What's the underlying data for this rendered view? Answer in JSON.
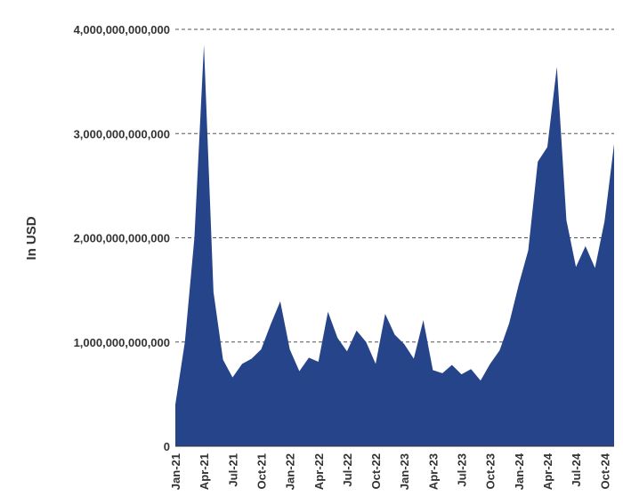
{
  "chart_data": {
    "type": "area",
    "ylabel": "In USD",
    "xlabel": "",
    "title": "",
    "color": "#25448a",
    "ylim": [
      0,
      4000000000000
    ],
    "y_ticks": [
      {
        "value": 0,
        "label": "0"
      },
      {
        "value": 1000000000000,
        "label": "1,000,000,000,000"
      },
      {
        "value": 2000000000000,
        "label": "2,000,000,000,000"
      },
      {
        "value": 3000000000000,
        "label": "3,000,000,000,000"
      },
      {
        "value": 4000000000000,
        "label": "4,000,000,000,000"
      }
    ],
    "x_ticks": [
      "Jan-21",
      "Apr-21",
      "Jul-21",
      "Oct-21",
      "Jan-22",
      "Apr-22",
      "Jul-22",
      "Oct-22",
      "Jan-23",
      "Apr-23",
      "Jul-23",
      "Oct-23",
      "Jan-24",
      "Apr-24",
      "Jul-24",
      "Oct-24"
    ],
    "x_tick_every": 3,
    "grid": true,
    "legend": "none",
    "x": [
      "Jan-21",
      "Feb-21",
      "Mar-21",
      "Apr-21",
      "May-21",
      "Jun-21",
      "Jul-21",
      "Aug-21",
      "Sep-21",
      "Oct-21",
      "Nov-21",
      "Dec-21",
      "Jan-22",
      "Feb-22",
      "Mar-22",
      "Apr-22",
      "May-22",
      "Jun-22",
      "Jul-22",
      "Aug-22",
      "Sep-22",
      "Oct-22",
      "Nov-22",
      "Dec-22",
      "Jan-23",
      "Feb-23",
      "Mar-23",
      "Apr-23",
      "May-23",
      "Jun-23",
      "Jul-23",
      "Aug-23",
      "Sep-23",
      "Oct-23",
      "Nov-23",
      "Dec-23",
      "Jan-24",
      "Feb-24",
      "Mar-24",
      "Apr-24",
      "May-24",
      "Jun-24",
      "Jul-24",
      "Aug-24",
      "Sep-24",
      "Oct-24",
      "Nov-24"
    ],
    "values": [
      400000000000,
      1000000000000,
      2000000000000,
      3850000000000,
      1480000000000,
      830000000000,
      660000000000,
      790000000000,
      840000000000,
      930000000000,
      1170000000000,
      1390000000000,
      930000000000,
      720000000000,
      850000000000,
      810000000000,
      1290000000000,
      1040000000000,
      910000000000,
      1110000000000,
      1000000000000,
      790000000000,
      1270000000000,
      1070000000000,
      980000000000,
      840000000000,
      1210000000000,
      730000000000,
      700000000000,
      780000000000,
      690000000000,
      740000000000,
      630000000000,
      790000000000,
      920000000000,
      1180000000000,
      1550000000000,
      1880000000000,
      2730000000000,
      2870000000000,
      3640000000000,
      2170000000000,
      1720000000000,
      1920000000000,
      1710000000000,
      2160000000000,
      2900000000000
    ]
  }
}
